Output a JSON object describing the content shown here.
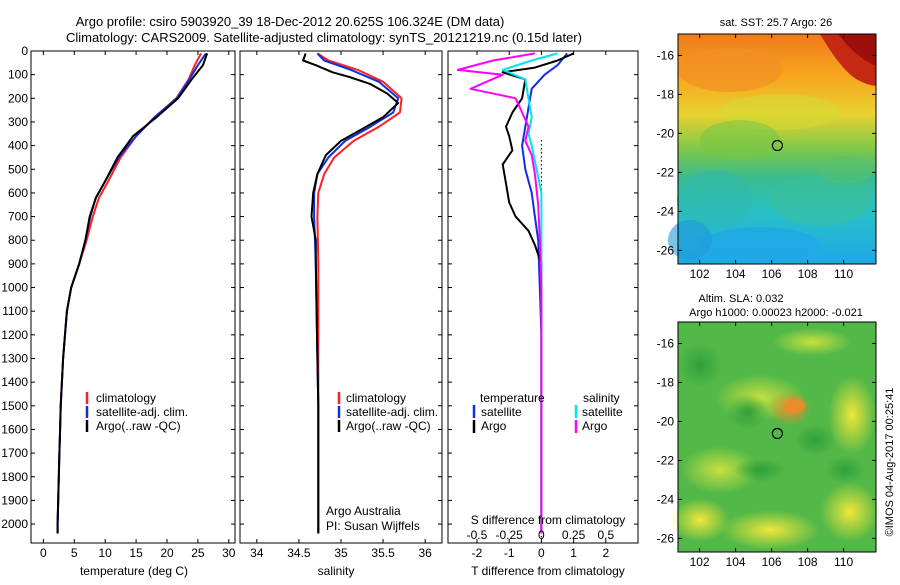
{
  "header": {
    "title_line1": "Argo profile: csiro 5903920_39 18-Dec-2012 20.625S 106.324E (DM data)",
    "title_line2": "Climatology: CARS2009. Satellite-adjusted climatology: synTS_20121219.nc (0.15d later)"
  },
  "footer": {
    "credit": "©IMOS 04-Aug-2017 00:25:41"
  },
  "colors": {
    "climatology": "#ff1f1f",
    "satellite": "#1030e0",
    "argo": "#000000",
    "sal_satellite": "#00e5e5",
    "sal_argo": "#ff00ff"
  },
  "chart_data": [
    {
      "type": "line",
      "name": "temperature-profile",
      "xlabel": "temperature (deg C)",
      "ylabel": "",
      "xlim": [
        -2,
        31
      ],
      "ylim": [
        2080,
        0
      ],
      "xticks": [
        0,
        5,
        10,
        15,
        20,
        25,
        30
      ],
      "yticks": [
        0,
        100,
        200,
        300,
        400,
        500,
        600,
        700,
        800,
        900,
        1000,
        1100,
        1200,
        1300,
        1400,
        1500,
        1600,
        1700,
        1800,
        1900,
        2000
      ],
      "legend": [
        "climatology",
        "satellite-adj. clim.",
        "Argo(..raw -QC)"
      ],
      "series": [
        {
          "name": "climatology",
          "color": "#ff1f1f",
          "points": [
            [
              25.5,
              10
            ],
            [
              24.5,
              60
            ],
            [
              23.5,
              120
            ],
            [
              21.5,
              200
            ],
            [
              18,
              280
            ],
            [
              15,
              360
            ],
            [
              12.5,
              450
            ],
            [
              10.5,
              550
            ],
            [
              9,
              620
            ],
            [
              8,
              700
            ],
            [
              7,
              800
            ],
            [
              5.8,
              900
            ],
            [
              4.5,
              1000
            ],
            [
              3.8,
              1100
            ],
            [
              3.5,
              1200
            ],
            [
              3.2,
              1300
            ],
            [
              3.0,
              1400
            ],
            [
              2.8,
              1500
            ],
            [
              2.7,
              1600
            ],
            [
              2.6,
              1700
            ],
            [
              2.5,
              1800
            ],
            [
              2.4,
              1900
            ],
            [
              2.3,
              2000
            ],
            [
              2.3,
              2040
            ]
          ]
        },
        {
          "name": "satellite-adj. clim.",
          "color": "#1030e0",
          "points": [
            [
              26.3,
              10
            ],
            [
              25,
              60
            ],
            [
              23.6,
              120
            ],
            [
              21.6,
              200
            ],
            [
              18,
              280
            ],
            [
              15,
              360
            ],
            [
              12.2,
              450
            ],
            [
              10,
              550
            ],
            [
              8.5,
              620
            ],
            [
              7.6,
              700
            ],
            [
              6.8,
              800
            ],
            [
              5.8,
              900
            ],
            [
              4.5,
              1000
            ],
            [
              3.8,
              1100
            ],
            [
              3.5,
              1200
            ],
            [
              3.2,
              1300
            ],
            [
              3.0,
              1400
            ],
            [
              2.8,
              1500
            ],
            [
              2.7,
              1600
            ],
            [
              2.6,
              1700
            ],
            [
              2.5,
              1800
            ],
            [
              2.4,
              1900
            ],
            [
              2.3,
              2000
            ],
            [
              2.3,
              2040
            ]
          ]
        },
        {
          "name": "Argo(..raw -QC)",
          "color": "#000000",
          "points": [
            [
              26.5,
              10
            ],
            [
              25.8,
              60
            ],
            [
              24,
              120
            ],
            [
              21.8,
              200
            ],
            [
              18.3,
              280
            ],
            [
              14.5,
              360
            ],
            [
              12,
              450
            ],
            [
              10,
              550
            ],
            [
              8.5,
              620
            ],
            [
              7.5,
              700
            ],
            [
              6.8,
              800
            ],
            [
              5.8,
              900
            ],
            [
              4.5,
              1000
            ],
            [
              3.8,
              1100
            ],
            [
              3.5,
              1200
            ],
            [
              3.2,
              1300
            ],
            [
              3.0,
              1400
            ],
            [
              2.8,
              1500
            ],
            [
              2.7,
              1600
            ],
            [
              2.6,
              1700
            ],
            [
              2.5,
              1800
            ],
            [
              2.4,
              1900
            ],
            [
              2.3,
              2000
            ],
            [
              2.3,
              2040
            ]
          ]
        }
      ]
    },
    {
      "type": "line",
      "name": "salinity-profile",
      "xlabel": "salinity",
      "xlim": [
        33.8,
        36.2
      ],
      "ylim": [
        2080,
        0
      ],
      "xticks": [
        34,
        34.5,
        35,
        35.5,
        36
      ],
      "legend": [
        "climatology",
        "satellite-adj. clim.",
        "Argo(..raw -QC)"
      ],
      "annotation_line1": "Argo Australia",
      "annotation_line2": "PI: Susan Wijffels",
      "series": [
        {
          "name": "climatology",
          "color": "#ff1f1f",
          "points": [
            [
              34.72,
              10
            ],
            [
              34.85,
              40
            ],
            [
              35.2,
              80
            ],
            [
              35.5,
              130
            ],
            [
              35.72,
              200
            ],
            [
              35.7,
              260
            ],
            [
              35.45,
              320
            ],
            [
              35.15,
              380
            ],
            [
              34.92,
              450
            ],
            [
              34.8,
              520
            ],
            [
              34.73,
              600
            ],
            [
              34.72,
              700
            ],
            [
              34.73,
              900
            ],
            [
              34.73,
              1100
            ],
            [
              34.73,
              1300
            ],
            [
              34.73,
              1500
            ],
            [
              34.73,
              1700
            ],
            [
              34.73,
              1900
            ],
            [
              34.73,
              2040
            ]
          ]
        },
        {
          "name": "satellite-adj. clim.",
          "color": "#1030e0",
          "points": [
            [
              34.72,
              10
            ],
            [
              34.8,
              40
            ],
            [
              35.12,
              80
            ],
            [
              35.45,
              130
            ],
            [
              35.68,
              200
            ],
            [
              35.62,
              260
            ],
            [
              35.35,
              320
            ],
            [
              35.05,
              380
            ],
            [
              34.85,
              450
            ],
            [
              34.72,
              520
            ],
            [
              34.68,
              600
            ],
            [
              34.68,
              700
            ],
            [
              34.7,
              900
            ],
            [
              34.71,
              1100
            ],
            [
              34.72,
              1300
            ],
            [
              34.73,
              1500
            ],
            [
              34.73,
              1700
            ],
            [
              34.73,
              1900
            ],
            [
              34.73,
              2040
            ]
          ]
        },
        {
          "name": "Argo(..raw -QC)",
          "color": "#000000",
          "points": [
            [
              34.58,
              10
            ],
            [
              34.55,
              40
            ],
            [
              34.7,
              60
            ],
            [
              34.9,
              90
            ],
            [
              35.1,
              110
            ],
            [
              35.35,
              140
            ],
            [
              35.55,
              180
            ],
            [
              35.68,
              220
            ],
            [
              35.5,
              280
            ],
            [
              35.25,
              330
            ],
            [
              35.0,
              380
            ],
            [
              34.82,
              440
            ],
            [
              34.72,
              520
            ],
            [
              34.67,
              600
            ],
            [
              34.65,
              700
            ],
            [
              34.7,
              800
            ],
            [
              34.7,
              900
            ],
            [
              34.71,
              1100
            ],
            [
              34.72,
              1300
            ],
            [
              34.73,
              1500
            ],
            [
              34.73,
              1700
            ],
            [
              34.73,
              1900
            ],
            [
              34.73,
              2040
            ]
          ]
        }
      ]
    },
    {
      "type": "line",
      "name": "difference-profile",
      "xlabel": "T difference from climatology",
      "xlabel_top": "S difference from climatology",
      "xlim": [
        -2.9,
        3.0
      ],
      "ylim": [
        2080,
        0
      ],
      "xticks_T": [
        -2,
        -1,
        0,
        1,
        2
      ],
      "xticks_S_labels": [
        "-0.5",
        "-0.25",
        "0",
        "0.25",
        "0.5"
      ],
      "xticks_S_positions": [
        -2,
        -1,
        0,
        1,
        2
      ],
      "legend_left_title": "temperature",
      "legend_right_title": "salinity",
      "legend": [
        "satellite",
        "Argo",
        "satellite",
        "Argo"
      ],
      "series": [
        {
          "name": "T satellite",
          "color": "#1030e0",
          "points": [
            [
              0.8,
              10
            ],
            [
              0.5,
              60
            ],
            [
              0.1,
              100
            ],
            [
              -0.3,
              160
            ],
            [
              -0.4,
              240
            ],
            [
              -0.5,
              320
            ],
            [
              -0.6,
              400
            ],
            [
              -0.5,
              500
            ],
            [
              -0.3,
              600
            ],
            [
              -0.2,
              700
            ],
            [
              -0.1,
              800
            ],
            [
              -0.05,
              1000
            ],
            [
              0,
              1200
            ],
            [
              0,
              1500
            ],
            [
              0,
              2040
            ]
          ]
        },
        {
          "name": "T Argo",
          "color": "#000000",
          "points": [
            [
              1.0,
              10
            ],
            [
              0.5,
              40
            ],
            [
              -0.2,
              70
            ],
            [
              -1.2,
              90
            ],
            [
              -0.5,
              120
            ],
            [
              -0.6,
              200
            ],
            [
              -0.9,
              260
            ],
            [
              -1.1,
              320
            ],
            [
              -1.0,
              360
            ],
            [
              -0.9,
              420
            ],
            [
              -1.2,
              480
            ],
            [
              -1.1,
              560
            ],
            [
              -1.0,
              640
            ],
            [
              -0.8,
              700
            ],
            [
              -0.4,
              760
            ],
            [
              -0.2,
              820
            ],
            [
              0,
              900
            ],
            [
              0,
              1200
            ],
            [
              0,
              2040
            ]
          ]
        },
        {
          "name": "S satellite",
          "color": "#00e5e5",
          "points": [
            [
              0.5,
              10
            ],
            [
              -0.3,
              40
            ],
            [
              -1.2,
              80
            ],
            [
              -0.5,
              120
            ],
            [
              -0.4,
              200
            ],
            [
              -0.3,
              280
            ],
            [
              -0.4,
              350
            ],
            [
              -0.3,
              400
            ],
            [
              0,
              600
            ],
            [
              0,
              800
            ],
            [
              0,
              1000
            ],
            [
              0,
              2040
            ]
          ]
        },
        {
          "name": "S Argo",
          "color": "#ff00ff",
          "points": [
            [
              -0.2,
              10
            ],
            [
              -1.5,
              40
            ],
            [
              -2.6,
              80
            ],
            [
              -1.2,
              100
            ],
            [
              -2.2,
              160
            ],
            [
              -0.8,
              200
            ],
            [
              -0.6,
              260
            ],
            [
              -0.4,
              320
            ],
            [
              -0.5,
              380
            ],
            [
              -0.3,
              440
            ],
            [
              -0.2,
              520
            ],
            [
              -0.1,
              650
            ],
            [
              -0.05,
              800
            ],
            [
              0,
              1000
            ],
            [
              0,
              1800
            ],
            [
              0,
              2040
            ]
          ]
        }
      ]
    },
    {
      "type": "heatmap",
      "name": "sst-map",
      "title": "sat. SST: 25.7  Argo: 26",
      "xticks": [
        102,
        104,
        106,
        108,
        110
      ],
      "yticks": [
        -16,
        -18,
        -20,
        -22,
        -24,
        -26
      ],
      "xlim": [
        100.8,
        111.8
      ],
      "ylim": [
        -26.7,
        -14.9
      ],
      "marker": [
        106.32,
        -20.62
      ]
    },
    {
      "type": "heatmap",
      "name": "sla-map",
      "title_line1": "Altim. SLA: 0.032",
      "title_line2": "Argo h1000: 0.00023  h2000: -0.021",
      "xticks": [
        102,
        104,
        106,
        108,
        110
      ],
      "yticks": [
        -16,
        -18,
        -20,
        -22,
        -24,
        -26
      ],
      "xlim": [
        100.8,
        111.8
      ],
      "ylim": [
        -26.7,
        -14.9
      ],
      "marker": [
        106.32,
        -20.62
      ]
    }
  ]
}
